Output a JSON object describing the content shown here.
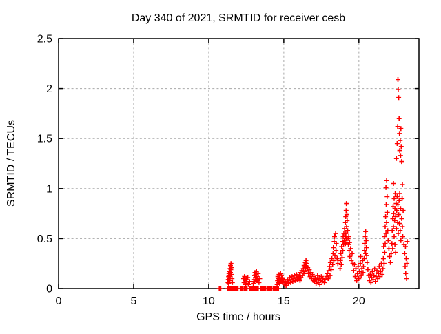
{
  "chart_data": {
    "type": "scatter",
    "title": "Day 340 of 2021, SRMTID for receiver cesb",
    "xlabel": "GPS time / hours",
    "ylabel": "SRMTID / TECUs",
    "xlim": [
      0,
      24
    ],
    "ylim": [
      0,
      2.5
    ],
    "xticks": [
      0,
      5,
      10,
      15,
      20
    ],
    "xtick_labels": [
      "0",
      "5",
      "10",
      "15",
      "20"
    ],
    "yticks": [
      0,
      0.5,
      1,
      1.5,
      2,
      2.5
    ],
    "ytick_labels": [
      "0",
      "0.5",
      "1",
      "1.5",
      "2",
      "2.5"
    ],
    "grid_x": [
      5,
      10,
      15,
      20
    ],
    "grid_y": [
      0.5,
      1,
      1.5,
      2
    ],
    "grid_on": true,
    "legend": "none",
    "marker": "plus",
    "colors": {
      "marker": "#ff0000",
      "grid": "#a8a8a8",
      "axis": "#000000",
      "background": "#ffffff"
    },
    "series_name": "SRMTID",
    "points": [
      [
        10.7,
        0
      ],
      [
        10.75,
        0
      ],
      [
        10.8,
        0
      ],
      [
        11.25,
        0
      ],
      [
        11.3,
        0
      ],
      [
        11.35,
        0
      ],
      [
        11.4,
        0
      ],
      [
        11.45,
        0
      ],
      [
        11.5,
        0
      ],
      [
        11.55,
        0
      ],
      [
        11.6,
        0
      ],
      [
        11.65,
        0
      ],
      [
        11.7,
        0
      ],
      [
        11.75,
        0
      ],
      [
        11.8,
        0
      ],
      [
        11.85,
        0
      ],
      [
        11.9,
        0
      ],
      [
        11.95,
        0
      ],
      [
        12.1,
        0
      ],
      [
        12.15,
        0
      ],
      [
        12.2,
        0
      ],
      [
        12.25,
        0
      ],
      [
        12.35,
        0
      ],
      [
        12.4,
        0
      ],
      [
        12.45,
        0
      ],
      [
        12.5,
        0
      ],
      [
        12.55,
        0
      ],
      [
        12.7,
        0
      ],
      [
        12.75,
        0
      ],
      [
        12.8,
        0
      ],
      [
        12.85,
        0
      ],
      [
        12.9,
        0
      ],
      [
        12.95,
        0
      ],
      [
        13.0,
        0
      ],
      [
        13.05,
        0
      ],
      [
        13.1,
        0
      ],
      [
        13.15,
        0
      ],
      [
        13.2,
        0
      ],
      [
        13.25,
        0
      ],
      [
        13.3,
        0
      ],
      [
        13.45,
        0
      ],
      [
        13.5,
        0
      ],
      [
        13.55,
        0
      ],
      [
        13.6,
        0
      ],
      [
        13.65,
        0
      ],
      [
        13.7,
        0
      ],
      [
        13.75,
        0
      ],
      [
        13.8,
        0
      ],
      [
        13.9,
        0
      ],
      [
        13.95,
        0
      ],
      [
        14.0,
        0
      ],
      [
        14.05,
        0
      ],
      [
        14.1,
        0
      ],
      [
        14.15,
        0
      ],
      [
        14.2,
        0
      ],
      [
        14.3,
        0
      ],
      [
        14.35,
        0
      ],
      [
        14.4,
        0
      ],
      [
        14.45,
        0
      ],
      [
        14.5,
        0
      ],
      [
        14.55,
        0
      ],
      [
        14.6,
        0
      ],
      [
        14.65,
        0
      ],
      [
        11.28,
        0.06
      ],
      [
        11.3,
        0.09
      ],
      [
        11.32,
        0.12
      ],
      [
        11.33,
        0.05
      ],
      [
        11.35,
        0.15
      ],
      [
        11.36,
        0.1
      ],
      [
        11.38,
        0.13
      ],
      [
        11.4,
        0.17
      ],
      [
        11.4,
        0.08
      ],
      [
        11.42,
        0.2
      ],
      [
        11.43,
        0.12
      ],
      [
        11.45,
        0.23
      ],
      [
        11.45,
        0.16
      ],
      [
        11.47,
        0.19
      ],
      [
        11.48,
        0.25
      ],
      [
        11.5,
        0.21
      ],
      [
        11.52,
        0.14
      ],
      [
        11.55,
        0.1
      ],
      [
        11.58,
        0.06
      ],
      [
        12.32,
        0.1
      ],
      [
        12.35,
        0.06
      ],
      [
        12.38,
        0.12
      ],
      [
        12.42,
        0.08
      ],
      [
        12.45,
        0.04
      ],
      [
        12.5,
        0.09
      ],
      [
        12.55,
        0.05
      ],
      [
        12.6,
        0.11
      ],
      [
        12.65,
        0.04
      ],
      [
        12.72,
        0.07
      ],
      [
        12.97,
        0.05
      ],
      [
        13.0,
        0.09
      ],
      [
        13.03,
        0.13
      ],
      [
        13.05,
        0.07
      ],
      [
        13.08,
        0.16
      ],
      [
        13.1,
        0.11
      ],
      [
        13.13,
        0.14
      ],
      [
        13.15,
        0.08
      ],
      [
        13.18,
        0.17
      ],
      [
        13.2,
        0.12
      ],
      [
        13.25,
        0.09
      ],
      [
        13.3,
        0.15
      ],
      [
        13.35,
        0.06
      ],
      [
        13.4,
        0.1
      ],
      [
        14.55,
        0.04
      ],
      [
        14.58,
        0.08
      ],
      [
        14.6,
        0.12
      ],
      [
        14.63,
        0.06
      ],
      [
        14.65,
        0.1
      ],
      [
        14.68,
        0.14
      ],
      [
        14.7,
        0.08
      ],
      [
        14.73,
        0.05
      ],
      [
        14.75,
        0.11
      ],
      [
        14.78,
        0.15
      ],
      [
        14.8,
        0.09
      ],
      [
        14.85,
        0.13
      ],
      [
        14.88,
        0.07
      ],
      [
        14.9,
        0.1
      ],
      [
        14.95,
        0.06
      ],
      [
        15.0,
        0.09
      ],
      [
        15.05,
        0.04
      ],
      [
        15.1,
        0.07
      ],
      [
        15.15,
        0.03
      ],
      [
        15.2,
        0.06
      ],
      [
        15.25,
        0.09
      ],
      [
        15.3,
        0.05
      ],
      [
        15.35,
        0.08
      ],
      [
        15.4,
        0.11
      ],
      [
        15.45,
        0.06
      ],
      [
        15.5,
        0.09
      ],
      [
        15.55,
        0.12
      ],
      [
        15.6,
        0.07
      ],
      [
        15.65,
        0.1
      ],
      [
        15.7,
        0.13
      ],
      [
        15.75,
        0.08
      ],
      [
        15.8,
        0.11
      ],
      [
        15.85,
        0.14
      ],
      [
        15.9,
        0.09
      ],
      [
        15.95,
        0.12
      ],
      [
        16.0,
        0.1
      ],
      [
        16.05,
        0.13
      ],
      [
        16.08,
        0.08
      ],
      [
        16.1,
        0.16
      ],
      [
        16.15,
        0.11
      ],
      [
        16.2,
        0.18
      ],
      [
        16.25,
        0.13
      ],
      [
        16.3,
        0.2
      ],
      [
        16.33,
        0.15
      ],
      [
        16.35,
        0.23
      ],
      [
        16.4,
        0.17
      ],
      [
        16.43,
        0.26
      ],
      [
        16.45,
        0.2
      ],
      [
        16.48,
        0.28
      ],
      [
        16.5,
        0.22
      ],
      [
        16.53,
        0.25
      ],
      [
        16.55,
        0.18
      ],
      [
        16.6,
        0.21
      ],
      [
        16.65,
        0.15
      ],
      [
        16.7,
        0.19
      ],
      [
        16.75,
        0.12
      ],
      [
        16.8,
        0.16
      ],
      [
        16.85,
        0.1
      ],
      [
        16.9,
        0.14
      ],
      [
        16.95,
        0.08
      ],
      [
        17.0,
        0.12
      ],
      [
        17.05,
        0.07
      ],
      [
        17.1,
        0.1
      ],
      [
        17.15,
        0.05
      ],
      [
        17.2,
        0.09
      ],
      [
        17.25,
        0.13
      ],
      [
        17.3,
        0.06
      ],
      [
        17.35,
        0.1
      ],
      [
        17.4,
        0.04
      ],
      [
        17.45,
        0.08
      ],
      [
        17.5,
        0.12
      ],
      [
        17.55,
        0.07
      ],
      [
        17.6,
        0.1
      ],
      [
        17.7,
        0.06
      ],
      [
        17.75,
        0.09
      ],
      [
        17.85,
        0.12
      ],
      [
        17.9,
        0.15
      ],
      [
        17.95,
        0.1
      ],
      [
        18.0,
        0.18
      ],
      [
        18.05,
        0.22
      ],
      [
        18.08,
        0.13
      ],
      [
        18.1,
        0.26
      ],
      [
        18.15,
        0.19
      ],
      [
        18.2,
        0.3
      ],
      [
        18.25,
        0.24
      ],
      [
        18.28,
        0.35
      ],
      [
        18.3,
        0.41
      ],
      [
        18.33,
        0.28
      ],
      [
        18.35,
        0.47
      ],
      [
        18.38,
        0.52
      ],
      [
        18.4,
        0.33
      ],
      [
        18.45,
        0.55
      ],
      [
        18.48,
        0.38
      ],
      [
        18.5,
        0.45
      ],
      [
        18.55,
        0.3
      ],
      [
        18.6,
        0.25
      ],
      [
        18.75,
        0.2
      ],
      [
        18.78,
        0.28
      ],
      [
        18.8,
        0.35
      ],
      [
        18.83,
        0.24
      ],
      [
        18.85,
        0.42
      ],
      [
        18.88,
        0.31
      ],
      [
        18.9,
        0.47
      ],
      [
        18.93,
        0.38
      ],
      [
        18.95,
        0.52
      ],
      [
        18.98,
        0.44
      ],
      [
        19.0,
        0.55
      ],
      [
        19.02,
        0.48
      ],
      [
        19.05,
        0.6
      ],
      [
        19.08,
        0.52
      ],
      [
        19.1,
        0.66
      ],
      [
        19.1,
        0.45
      ],
      [
        19.12,
        0.72
      ],
      [
        19.13,
        0.55
      ],
      [
        19.15,
        0.78
      ],
      [
        19.15,
        0.5
      ],
      [
        19.17,
        0.85
      ],
      [
        19.18,
        0.62
      ],
      [
        19.2,
        0.74
      ],
      [
        19.2,
        0.46
      ],
      [
        19.22,
        0.68
      ],
      [
        19.25,
        0.58
      ],
      [
        19.28,
        0.5
      ],
      [
        19.3,
        0.44
      ],
      [
        19.33,
        0.52
      ],
      [
        19.35,
        0.38
      ],
      [
        19.38,
        0.46
      ],
      [
        19.4,
        0.32
      ],
      [
        19.45,
        0.4
      ],
      [
        19.5,
        0.28
      ],
      [
        19.55,
        0.35
      ],
      [
        19.6,
        0.25
      ],
      [
        19.65,
        0.18
      ],
      [
        19.7,
        0.24
      ],
      [
        19.75,
        0.12
      ],
      [
        19.8,
        0.2
      ],
      [
        19.85,
        0.08
      ],
      [
        19.9,
        0.15
      ],
      [
        19.95,
        0.22
      ],
      [
        20.0,
        0.1
      ],
      [
        20.05,
        0.17
      ],
      [
        20.1,
        0.25
      ],
      [
        20.12,
        0.32
      ],
      [
        20.15,
        0.13
      ],
      [
        20.2,
        0.2
      ],
      [
        20.25,
        0.28
      ],
      [
        20.28,
        0.16
      ],
      [
        20.3,
        0.22
      ],
      [
        20.35,
        0.3
      ],
      [
        20.38,
        0.38
      ],
      [
        20.4,
        0.45
      ],
      [
        20.42,
        0.52
      ],
      [
        20.45,
        0.57
      ],
      [
        20.45,
        0.35
      ],
      [
        20.48,
        0.48
      ],
      [
        20.5,
        0.41
      ],
      [
        20.52,
        0.33
      ],
      [
        20.55,
        0.26
      ],
      [
        20.6,
        0.19
      ],
      [
        20.65,
        0.13
      ],
      [
        20.7,
        0.08
      ],
      [
        20.75,
        0.14
      ],
      [
        20.8,
        0.06
      ],
      [
        20.85,
        0.11
      ],
      [
        20.9,
        0.17
      ],
      [
        20.95,
        0.09
      ],
      [
        21.0,
        0.13
      ],
      [
        21.05,
        0.2
      ],
      [
        21.1,
        0.07
      ],
      [
        21.15,
        0.12
      ],
      [
        21.2,
        0.18
      ],
      [
        21.25,
        0.1
      ],
      [
        21.3,
        0.15
      ],
      [
        21.35,
        0.22
      ],
      [
        21.4,
        0.12
      ],
      [
        21.45,
        0.17
      ],
      [
        21.5,
        0.25
      ],
      [
        21.55,
        0.14
      ],
      [
        21.6,
        0.2
      ],
      [
        21.63,
        0.3
      ],
      [
        21.65,
        0.42
      ],
      [
        21.68,
        0.25
      ],
      [
        21.7,
        0.52
      ],
      [
        21.72,
        0.36
      ],
      [
        21.75,
        0.62
      ],
      [
        21.75,
        0.45
      ],
      [
        21.78,
        0.72
      ],
      [
        21.8,
        0.55
      ],
      [
        21.8,
        1.01
      ],
      [
        21.82,
        0.84
      ],
      [
        21.85,
        1.08
      ],
      [
        21.85,
        0.66
      ],
      [
        21.88,
        0.92
      ],
      [
        21.9,
        0.76
      ],
      [
        21.92,
        0.58
      ],
      [
        21.95,
        0.48
      ],
      [
        22.0,
        0.4
      ],
      [
        22.05,
        0.32
      ],
      [
        22.1,
        0.26
      ],
      [
        22.15,
        0.35
      ],
      [
        22.2,
        0.45
      ],
      [
        22.22,
        0.58
      ],
      [
        22.25,
        0.7
      ],
      [
        22.25,
        0.4
      ],
      [
        22.28,
        0.82
      ],
      [
        22.3,
        0.62
      ],
      [
        22.3,
        1.05
      ],
      [
        22.32,
        0.75
      ],
      [
        22.35,
        0.9
      ],
      [
        22.35,
        0.52
      ],
      [
        22.38,
        0.68
      ],
      [
        22.4,
        0.8
      ],
      [
        22.4,
        0.44
      ],
      [
        22.42,
        0.95
      ],
      [
        22.45,
        0.72
      ],
      [
        22.45,
        0.36
      ],
      [
        22.48,
        0.85
      ],
      [
        22.5,
        0.6
      ],
      [
        22.5,
        1.3
      ],
      [
        22.52,
        0.78
      ],
      [
        22.55,
        0.92
      ],
      [
        22.55,
        1.45
      ],
      [
        22.58,
        0.66
      ],
      [
        22.58,
        1.62
      ],
      [
        22.6,
        0.84
      ],
      [
        22.6,
        2.09
      ],
      [
        22.62,
        1.99
      ],
      [
        22.62,
        0.55
      ],
      [
        22.65,
        1.91
      ],
      [
        22.65,
        0.74
      ],
      [
        22.68,
        1.7
      ],
      [
        22.68,
        0.88
      ],
      [
        22.7,
        1.55
      ],
      [
        22.7,
        0.65
      ],
      [
        22.72,
        1.38
      ],
      [
        22.72,
        0.95
      ],
      [
        22.75,
        1.48
      ],
      [
        22.75,
        0.58
      ],
      [
        22.78,
        1.33
      ],
      [
        22.78,
        0.8
      ],
      [
        22.8,
        1.6
      ],
      [
        22.8,
        0.48
      ],
      [
        22.82,
        1.42
      ],
      [
        22.85,
        1.27
      ],
      [
        22.85,
        0.7
      ],
      [
        22.88,
        0.9
      ],
      [
        22.9,
        0.62
      ],
      [
        22.9,
        1.04
      ],
      [
        22.92,
        0.52
      ],
      [
        22.95,
        0.78
      ],
      [
        23.0,
        0.44
      ],
      [
        23.05,
        0.35
      ],
      [
        23.08,
        0.22
      ],
      [
        23.1,
        0.42
      ],
      [
        23.12,
        0.15
      ],
      [
        23.15,
        0.3
      ],
      [
        23.18,
        0.1
      ],
      [
        23.2,
        0.25
      ],
      [
        23.22,
        0.47
      ]
    ]
  }
}
